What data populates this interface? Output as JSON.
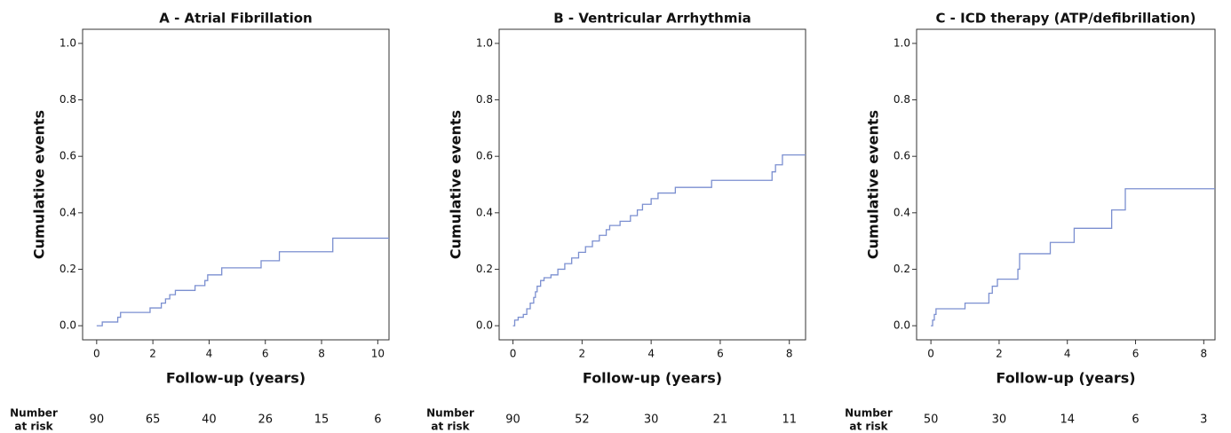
{
  "chart_data": [
    {
      "type": "step",
      "title": "A - Atrial Fibrillation",
      "x_label": "Follow-up (years)",
      "y_label": "Cumulative events",
      "color": "#7b8fd0",
      "x": [
        0,
        0.2,
        0.75,
        0.85,
        1.9,
        2.3,
        2.45,
        2.6,
        2.8,
        3.5,
        3.85,
        3.95,
        4.45,
        5.85,
        6.5,
        8.4,
        10.4
      ],
      "values": [
        0,
        0.013,
        0.03,
        0.047,
        0.063,
        0.08,
        0.095,
        0.11,
        0.125,
        0.142,
        0.16,
        0.18,
        0.205,
        0.23,
        0.262,
        0.31,
        0.31
      ],
      "xlim": [
        -0.5,
        10.4
      ],
      "ylim": [
        -0.05,
        1.05
      ],
      "xticks": [
        0,
        2,
        4,
        6,
        8,
        10
      ],
      "yticks": [
        {
          "value": 0,
          "label": "0.0"
        },
        {
          "value": 0.2,
          "label": "0.2"
        },
        {
          "value": 0.4,
          "label": "0.4"
        },
        {
          "value": 0.6,
          "label": "0.6"
        },
        {
          "value": 0.8,
          "label": "0.8"
        },
        {
          "value": 1,
          "label": "1.0"
        }
      ],
      "risk_label": [
        "Number",
        "at risk"
      ],
      "risk_counts": [
        90,
        65,
        40,
        26,
        15,
        6
      ]
    },
    {
      "type": "step",
      "title": "B - Ventricular Arrhythmia",
      "x_label": "Follow-up (years)",
      "y_label": "Cumulative events",
      "color": "#7b8fd0",
      "x": [
        0,
        0.05,
        0.15,
        0.3,
        0.4,
        0.5,
        0.6,
        0.65,
        0.7,
        0.8,
        0.9,
        1.1,
        1.3,
        1.5,
        1.7,
        1.9,
        2.1,
        2.3,
        2.5,
        2.7,
        2.8,
        3.1,
        3.4,
        3.6,
        3.75,
        4.0,
        4.2,
        4.7,
        5.75,
        7.5,
        7.6,
        7.8,
        8.47
      ],
      "values": [
        0,
        0.02,
        0.03,
        0.04,
        0.06,
        0.08,
        0.1,
        0.12,
        0.14,
        0.16,
        0.17,
        0.18,
        0.2,
        0.22,
        0.24,
        0.26,
        0.28,
        0.3,
        0.32,
        0.34,
        0.355,
        0.37,
        0.39,
        0.41,
        0.43,
        0.45,
        0.47,
        0.49,
        0.515,
        0.545,
        0.57,
        0.605,
        0.605
      ],
      "xlim": [
        -0.4,
        8.47
      ],
      "ylim": [
        -0.05,
        1.05
      ],
      "xticks": [
        0,
        2,
        4,
        6,
        8
      ],
      "yticks": [
        {
          "value": 0,
          "label": "0.0"
        },
        {
          "value": 0.2,
          "label": "0.2"
        },
        {
          "value": 0.4,
          "label": "0.4"
        },
        {
          "value": 0.6,
          "label": "0.6"
        },
        {
          "value": 0.8,
          "label": "0.8"
        },
        {
          "value": 1,
          "label": "1.0"
        }
      ],
      "risk_label": [
        "Number",
        "at risk"
      ],
      "risk_counts": [
        90,
        52,
        30,
        21,
        11
      ]
    },
    {
      "type": "step",
      "title": "C - ICD therapy (ATP/defibrillation)",
      "x_label": "Follow-up (years)",
      "y_label": "Cumulative events",
      "color": "#7b8fd0",
      "x": [
        0,
        0.05,
        0.1,
        0.15,
        1.0,
        1.7,
        1.8,
        1.95,
        2.55,
        2.6,
        3.5,
        4.2,
        5.3,
        5.7,
        8.33
      ],
      "values": [
        0,
        0.02,
        0.04,
        0.06,
        0.08,
        0.115,
        0.14,
        0.165,
        0.2,
        0.255,
        0.295,
        0.345,
        0.41,
        0.485,
        0.485
      ],
      "xlim": [
        -0.42,
        8.33
      ],
      "ylim": [
        -0.05,
        1.05
      ],
      "xticks": [
        0,
        2,
        4,
        6,
        8
      ],
      "yticks": [
        {
          "value": 0,
          "label": "0.0"
        },
        {
          "value": 0.2,
          "label": "0.2"
        },
        {
          "value": 0.4,
          "label": "0.4"
        },
        {
          "value": 0.6,
          "label": "0.6"
        },
        {
          "value": 0.8,
          "label": "0.8"
        },
        {
          "value": 1,
          "label": "1.0"
        }
      ],
      "risk_label": [
        "Number",
        "at risk"
      ],
      "risk_counts": [
        50,
        30,
        14,
        6,
        3
      ]
    }
  ]
}
